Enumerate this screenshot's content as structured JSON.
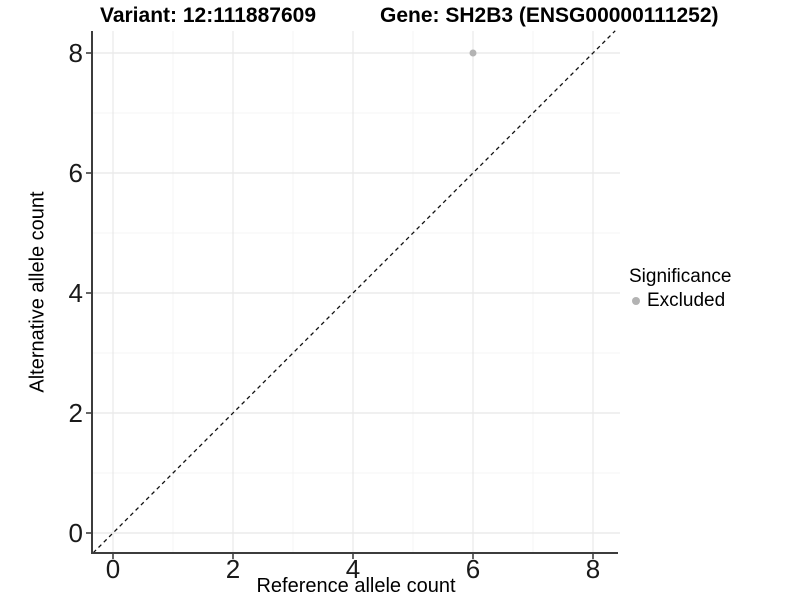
{
  "chart_data": {
    "type": "scatter",
    "titles": {
      "left": "Variant: 12:111887609",
      "right": "Gene: SH2B3 (ENSG00000111252)"
    },
    "xlabel": "Reference allele count",
    "ylabel": "Alternative allele count",
    "x_ticks": [
      0,
      2,
      4,
      6,
      8
    ],
    "y_ticks": [
      0,
      2,
      4,
      6,
      8
    ],
    "x_minor_ticks": [
      1,
      3,
      5,
      7
    ],
    "y_minor_ticks": [
      1,
      3,
      5,
      7
    ],
    "xlim": [
      -0.35,
      8.45
    ],
    "ylim": [
      -0.33,
      8.37
    ],
    "grid": "major+minor",
    "identity_line": {
      "equation": "y = x",
      "style": "dashed",
      "color": "#111111"
    },
    "points": [
      {
        "x": 6,
        "y": 8,
        "series": "Excluded"
      }
    ],
    "legend": {
      "title": "Significance",
      "position": "right",
      "items": [
        {
          "label": "Excluded",
          "color": "#b3b3b3"
        }
      ]
    },
    "colors": {
      "point": "#b3b3b3",
      "grid_major": "#e8e8e8",
      "grid_minor": "#f4f4f4",
      "axis_line": "#3c3c3c",
      "tick_mark": "#333333",
      "tick_label": "#1a1a1a"
    }
  }
}
